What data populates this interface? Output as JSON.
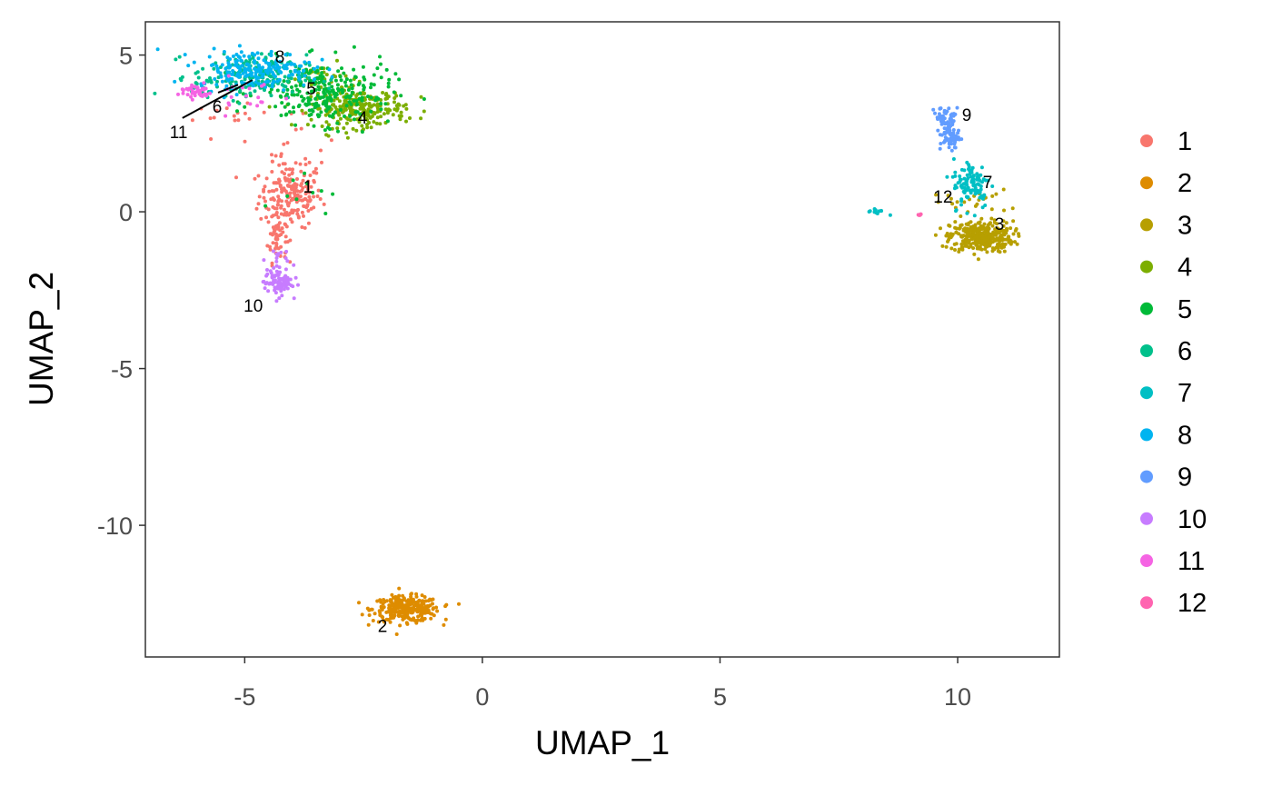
{
  "chart_data": {
    "type": "scatter",
    "xlabel": "UMAP_1",
    "ylabel": "UMAP_2",
    "xlim": [
      -7.09,
      12.14
    ],
    "ylim": [
      -14.2,
      6.06
    ],
    "xticks": [
      -5,
      0,
      5,
      10
    ],
    "xtick_labels": [
      "-5",
      "0",
      "5",
      "10"
    ],
    "yticks": [
      5,
      0,
      -5,
      -10
    ],
    "ytick_labels": [
      "5",
      "0",
      "-5",
      "-10"
    ],
    "grid": false,
    "legend_placement": "right",
    "clusters": [
      {
        "name": "1",
        "color": "#F8766D",
        "label_pos": [
          -3.67,
          0.81
        ],
        "blobs": [
          [
            -4.03,
            0.52,
            0.33,
            0.5,
            180
          ],
          [
            -4.32,
            -0.8,
            0.1,
            0.4,
            50
          ],
          [
            -3.84,
            2.1,
            0.4,
            0.6,
            25
          ],
          [
            -5.3,
            3.0,
            0.4,
            0.2,
            15
          ]
        ]
      },
      {
        "name": "2",
        "color": "#DE8C00",
        "label_pos": [
          -2.1,
          -13.2
        ],
        "blobs": [
          [
            -1.6,
            -12.67,
            0.35,
            0.2,
            300
          ]
        ]
      },
      {
        "name": "3",
        "color": "#B79F00",
        "label_pos": [
          10.88,
          -0.38
        ],
        "blobs": [
          [
            10.5,
            -0.8,
            0.33,
            0.25,
            350
          ],
          [
            10.3,
            0.3,
            0.4,
            0.2,
            25
          ]
        ]
      },
      {
        "name": "4",
        "color": "#7CAE00",
        "label_pos": [
          -2.52,
          3.01
        ],
        "blobs": [
          [
            -2.6,
            3.3,
            0.5,
            0.3,
            250
          ],
          [
            -3.4,
            4.3,
            0.3,
            0.2,
            30
          ]
        ]
      },
      {
        "name": "5",
        "color": "#00BA38",
        "label_pos": [
          -3.6,
          3.94
        ],
        "blobs": [
          [
            -3.3,
            3.8,
            0.7,
            0.5,
            250
          ],
          [
            -3.8,
            0.8,
            0.3,
            0.4,
            10
          ]
        ]
      },
      {
        "name": "6",
        "color": "#00C08B",
        "label_pos": [
          -5.58,
          3.36
        ],
        "blobs": [
          [
            -4.9,
            4.3,
            0.6,
            0.35,
            200
          ]
        ]
      },
      {
        "name": "7",
        "color": "#00BFC4",
        "label_pos": [
          10.63,
          0.96
        ],
        "blobs": [
          [
            10.3,
            0.9,
            0.2,
            0.4,
            100
          ],
          [
            8.3,
            0.0,
            0.1,
            0.05,
            12
          ]
        ]
      },
      {
        "name": "8",
        "color": "#00B4F0",
        "label_pos": [
          -4.26,
          4.96
        ],
        "blobs": [
          [
            -4.8,
            4.55,
            0.6,
            0.3,
            200
          ]
        ]
      },
      {
        "name": "9",
        "color": "#619CFF",
        "label_pos": [
          10.19,
          3.1
        ],
        "blobs": [
          [
            9.83,
            2.5,
            0.1,
            0.3,
            80
          ],
          [
            9.7,
            3.1,
            0.12,
            0.12,
            25
          ]
        ]
      },
      {
        "name": "10",
        "color": "#C77CFF",
        "label_pos": [
          -4.82,
          -2.99
        ],
        "blobs": [
          [
            -4.3,
            -2.25,
            0.15,
            0.2,
            90
          ],
          [
            -4.3,
            -1.5,
            0.1,
            0.2,
            15
          ]
        ]
      },
      {
        "name": "11",
        "color": "#F564E3",
        "label_pos": [
          -6.39,
          2.55
        ],
        "blobs": [
          [
            -6.04,
            3.85,
            0.18,
            0.12,
            40
          ],
          [
            -5.0,
            3.7,
            0.5,
            0.3,
            20
          ]
        ]
      },
      {
        "name": "12",
        "color": "#FF64B0",
        "label_pos": [
          9.69,
          0.49
        ],
        "blobs": [
          [
            9.2,
            -0.1,
            0.04,
            0.04,
            5
          ]
        ]
      }
    ],
    "label_segments": [
      {
        "cluster": "11",
        "from": [
          -6.31,
          2.99
        ],
        "to": [
          -4.84,
          4.2
        ]
      },
      {
        "cluster": "6",
        "from": [
          -5.56,
          3.8
        ],
        "to": [
          -5.14,
          4.05
        ]
      }
    ]
  }
}
